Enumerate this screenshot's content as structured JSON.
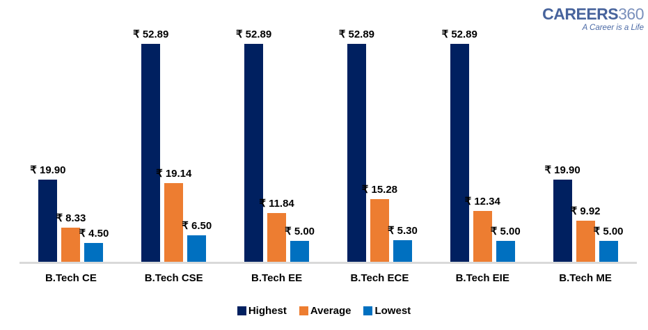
{
  "logo": {
    "brand_bold": "CAREERS",
    "brand_light": "360",
    "tagline": "A Career is a Life"
  },
  "colors": {
    "highest": "#002060",
    "average": "#ED7D31",
    "lowest": "#0070C0",
    "axis_line": "#D9D9D9",
    "logo_blue": "#47639C"
  },
  "chart_data": {
    "type": "bar",
    "title": "",
    "currency_symbol": "₹",
    "categories": [
      "B.Tech CE",
      "B.Tech CSE",
      "B.Tech EE",
      "B.Tech ECE",
      "B.Tech EIE",
      "B.Tech ME"
    ],
    "series": [
      {
        "name": "Highest",
        "color": "#002060",
        "values": [
          19.9,
          52.89,
          52.89,
          52.89,
          52.89,
          19.9
        ],
        "labels": [
          "₹ 19.90",
          "₹ 52.89",
          "₹ 52.89",
          "₹ 52.89",
          "₹ 52.89",
          "₹ 19.90"
        ]
      },
      {
        "name": "Average",
        "color": "#ED7D31",
        "values": [
          8.33,
          19.14,
          11.84,
          15.28,
          12.34,
          9.92
        ],
        "labels": [
          "₹ 8.33",
          "₹ 19.14",
          "₹ 11.84",
          "₹ 15.28",
          "₹ 12.34",
          "₹ 9.92"
        ]
      },
      {
        "name": "Lowest",
        "color": "#0070C0",
        "values": [
          4.5,
          6.5,
          5.0,
          5.3,
          5.0,
          5.0
        ],
        "labels": [
          "₹ 4.50",
          "₹ 6.50",
          "₹ 5.00",
          "₹ 5.30",
          "₹ 5.00",
          "₹ 5.00"
        ]
      }
    ],
    "ylim": [
      0,
      55
    ],
    "grid": false,
    "y_axis_visible": false,
    "legend_position": "bottom"
  }
}
